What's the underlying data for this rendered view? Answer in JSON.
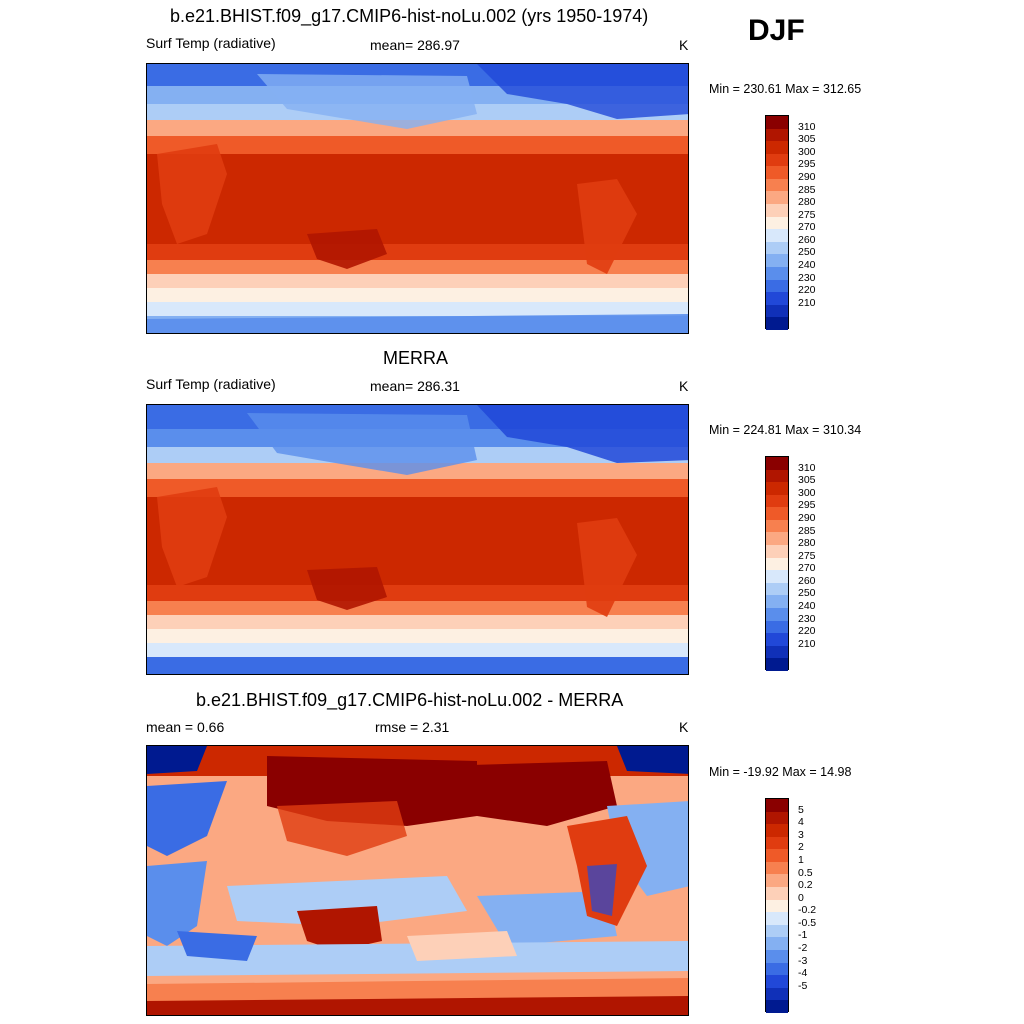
{
  "season": "DJF",
  "unit": "K",
  "panels": [
    {
      "title": "b.e21.BHIST.f09_g17.CMIP6-hist-noLu.002 (yrs 1950-1974)",
      "left_label": "Surf Temp (radiative)",
      "center_label": "mean= 286.97",
      "minmax": "Min = 230.61 Max = 312.65",
      "kind": "model"
    },
    {
      "title": "MERRA",
      "left_label": "Surf Temp (radiative)",
      "center_label": "mean= 286.31",
      "minmax": "Min = 224.81 Max = 310.34",
      "kind": "obs"
    },
    {
      "title": "b.e21.BHIST.f09_g17.CMIP6-hist-noLu.002 - MERRA",
      "left_label": "mean =   0.66",
      "center_label": "rmse =   2.31",
      "minmax": "Min = -19.92 Max =  14.98",
      "kind": "diff"
    }
  ],
  "colorbars": {
    "abs_levels": [
      "310",
      "305",
      "300",
      "295",
      "290",
      "285",
      "280",
      "275",
      "270",
      "260",
      "250",
      "240",
      "230",
      "220",
      "210"
    ],
    "abs_colors": [
      "#8a0000",
      "#b01500",
      "#cc2800",
      "#e03c10",
      "#ef5a28",
      "#f7804f",
      "#fba882",
      "#fdd0b8",
      "#fdf0e2",
      "#d8e8fb",
      "#adcdf6",
      "#84b0f2",
      "#5a8eec",
      "#3a6ce4",
      "#2148d8",
      "#1030b8",
      "#001a90"
    ],
    "diff_levels": [
      "5",
      "4",
      "3",
      "2",
      "1",
      "0.5",
      "0.2",
      "0",
      "-0.2",
      "-0.5",
      "-1",
      "-2",
      "-3",
      "-4",
      "-5"
    ],
    "diff_colors": [
      "#8a0000",
      "#b01500",
      "#cc2800",
      "#e03c10",
      "#ef5a28",
      "#f7804f",
      "#fba882",
      "#fdd0b8",
      "#fdf0e2",
      "#d8e8fb",
      "#adcdf6",
      "#84b0f2",
      "#5a8eec",
      "#3a6ce4",
      "#2148d8",
      "#1030b8",
      "#001a90"
    ]
  }
}
